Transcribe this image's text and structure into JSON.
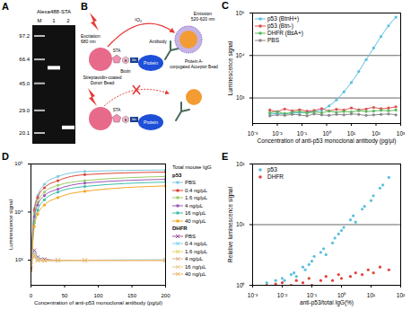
{
  "panel_a": {
    "panel": "A",
    "title": "Alexa488-STA",
    "lanes": [
      "M",
      "1",
      "2"
    ],
    "markers": [
      {
        "value": 97.2,
        "label": "97.2"
      },
      {
        "value": 66.4,
        "label": "66.4"
      },
      {
        "value": 45,
        "label": "45.0"
      },
      {
        "value": 29,
        "label": "29.0"
      },
      {
        "value": 20.1,
        "label": "20.1"
      }
    ],
    "bands": [
      {
        "lane": "1",
        "kda": 58
      },
      {
        "lane": "2",
        "kda": 22
      }
    ]
  },
  "panel_b": {
    "panel": "B",
    "excitation": [
      "Excitation",
      "680 nm"
    ],
    "singlet_oxygen": "¹O₂",
    "emission": [
      "Emission",
      "520-620 nm"
    ],
    "donor_bead": [
      "Streptavidin-coated",
      "Donor Bead"
    ],
    "acceptor_bead": [
      "Protein A-",
      "conjugated Acceptor Bead"
    ],
    "sta": "STA",
    "biotin": "Biotin",
    "biotin_tag": "B",
    "bls": "bls",
    "antibody": "Antibody",
    "protein": "Protein"
  },
  "chart_data": [
    {
      "panel": "C",
      "type": "line",
      "x_label": "Concentration of anti-p53 monoclonal antibody (pg/µl)",
      "y_label": "Luminescence signal",
      "log": true,
      "grid": true,
      "legend": "top-left",
      "xlim": [
        0.001,
        1000
      ],
      "ylim": [
        250,
        100000
      ],
      "xticks": [
        {
          "value": 0.001,
          "label": "10⁻³"
        },
        {
          "value": 0.01,
          "label": "10⁻²"
        },
        {
          "value": 0.1,
          "label": "10⁻¹"
        },
        {
          "value": 1,
          "label": "10⁰"
        },
        {
          "value": 10,
          "label": "10¹"
        },
        {
          "value": 100,
          "label": "10²"
        },
        {
          "value": 1000,
          "label": "10³"
        }
      ],
      "yticks": [
        {
          "value": 1000,
          "label": "10³"
        },
        {
          "value": 10000,
          "label": "10⁴"
        },
        {
          "value": 100000,
          "label": "10⁵"
        }
      ],
      "x": [
        0.005,
        0.01,
        0.02,
        0.04,
        0.08,
        0.16,
        0.31,
        0.63,
        1.25,
        2.5,
        5,
        10,
        20,
        40,
        80,
        160,
        320,
        640
      ],
      "series": [
        {
          "name": "p53 (BtnH+)",
          "color": "#5bc0de",
          "marker": "circle",
          "values": [
            420,
            430,
            420,
            440,
            450,
            460,
            480,
            520,
            650,
            900,
            1400,
            2300,
            4200,
            8000,
            15000,
            28000,
            50000,
            80000
          ]
        },
        {
          "name": "p53 (Btn-)",
          "color": "#d9534f",
          "marker": "circle",
          "values": [
            520,
            480,
            550,
            500,
            530,
            490,
            510,
            560,
            500,
            540,
            520,
            580,
            530,
            550,
            600,
            560,
            580,
            620
          ]
        },
        {
          "name": "DHFR (BsA+)",
          "color": "#5cb85c",
          "marker": "circle",
          "values": [
            450,
            470,
            430,
            460,
            480,
            440,
            470,
            450,
            490,
            460,
            480,
            470,
            500,
            480,
            490,
            510,
            500,
            520
          ]
        },
        {
          "name": "PBS",
          "color": "#888888",
          "marker": "circle",
          "values": [
            380,
            400,
            390,
            410,
            400,
            380,
            420,
            400,
            390,
            410,
            400,
            420,
            410,
            390,
            400,
            410,
            420,
            400
          ]
        }
      ]
    },
    {
      "panel": "D",
      "type": "line",
      "x_label": "Concentration of anti-p53 monoclonal antibody (pg/µl)",
      "y_label": "Luminescence signal",
      "log": "y",
      "grid": false,
      "legend": "right",
      "legend_title": "Total mouse IgG",
      "groups": [
        "p53",
        "DHFR"
      ],
      "xlim": [
        0,
        200
      ],
      "ylim": [
        300,
        100000
      ],
      "xticks": [
        0,
        50,
        100,
        150,
        200
      ],
      "yticks": [
        {
          "value": 1000,
          "label": "10³"
        },
        {
          "value": 10000,
          "label": "10⁴"
        },
        {
          "value": 100000,
          "label": "10⁵"
        }
      ],
      "x": [
        0,
        5,
        10,
        20,
        40,
        80,
        200
      ],
      "series": [
        {
          "name": "PBS",
          "group": "p53",
          "color": "#7ec8e3",
          "marker": "circle",
          "values": [
            700,
            12000,
            22000,
            38000,
            55000,
            70000,
            75000
          ]
        },
        {
          "name": "0.4 ng/µL",
          "group": "p53",
          "color": "#e0433a",
          "marker": "circle",
          "values": [
            700,
            11000,
            20000,
            32000,
            45000,
            60000,
            68000
          ]
        },
        {
          "name": "1.6 ng/µL",
          "group": "p53",
          "color": "#9acd66",
          "marker": "circle",
          "values": [
            650,
            9000,
            16000,
            26000,
            36000,
            45000,
            55000
          ]
        },
        {
          "name": "4 ng/µL",
          "group": "p53",
          "color": "#9b59b6",
          "marker": "circle",
          "values": [
            650,
            8000,
            14000,
            22000,
            30000,
            40000,
            48000
          ]
        },
        {
          "name": "16 ng/µL",
          "group": "p53",
          "color": "#3bbfad",
          "marker": "circle",
          "values": [
            600,
            6000,
            11000,
            18000,
            26000,
            34000,
            42000
          ]
        },
        {
          "name": "40 ng/µL",
          "group": "p53",
          "color": "#f5a623",
          "marker": "circle",
          "values": [
            600,
            5000,
            9000,
            14000,
            20000,
            27000,
            35000
          ]
        },
        {
          "name": "PBS",
          "group": "DHFR",
          "color": "#a0529a",
          "marker": "x",
          "values": [
            900,
            1600,
            1150,
            1050,
            1000,
            1000,
            1000
          ]
        },
        {
          "name": "0.4 ng/µL",
          "group": "DHFR",
          "color": "#7fd3f0",
          "marker": "x",
          "values": [
            850,
            1400,
            1100,
            1000,
            980,
            1000,
            1020
          ]
        },
        {
          "name": "1.6 ng/µL",
          "group": "DHFR",
          "color": "#e6d36a",
          "marker": "x",
          "values": [
            820,
            1300,
            1050,
            1000,
            990,
            1000,
            1000
          ]
        },
        {
          "name": "4 ng/µL",
          "group": "DHFR",
          "color": "#d9b38c",
          "marker": "x",
          "values": [
            800,
            1250,
            1000,
            980,
            1000,
            990,
            1000
          ]
        },
        {
          "name": "16 ng/µL",
          "group": "DHFR",
          "color": "#e8c98f",
          "marker": "x",
          "values": [
            800,
            1200,
            1000,
            990,
            980,
            1000,
            980
          ]
        },
        {
          "name": "40 ng/µL",
          "group": "DHFR",
          "color": "#ecb870",
          "marker": "x",
          "values": [
            780,
            1150,
            980,
            970,
            990,
            980,
            990
          ]
        }
      ]
    },
    {
      "panel": "E",
      "type": "scatter",
      "x_label": "anti-p53/total IgG(%)",
      "y_label": "Relative luminescence signal",
      "log": true,
      "grid": true,
      "legend": "top-left",
      "xlim": [
        0.001,
        100
      ],
      "ylim": [
        1,
        100
      ],
      "xticks": [
        {
          "value": 0.001,
          "label": "10⁻³"
        },
        {
          "value": 0.01,
          "label": "10⁻²"
        },
        {
          "value": 0.1,
          "label": "10⁻¹"
        },
        {
          "value": 1,
          "label": "10⁰"
        },
        {
          "value": 10,
          "label": "10¹"
        },
        {
          "value": 100,
          "label": "10²"
        }
      ],
      "yticks": [
        {
          "value": 1,
          "label": "10⁰"
        },
        {
          "value": 10,
          "label": "10¹"
        },
        {
          "value": 100,
          "label": "10²"
        }
      ],
      "series": [
        {
          "name": "p53",
          "color": "#5bc0de",
          "marker": "circle",
          "x": [
            0.003,
            0.006,
            0.01,
            0.012,
            0.02,
            0.025,
            0.03,
            0.05,
            0.06,
            0.08,
            0.1,
            0.12,
            0.2,
            0.25,
            0.3,
            0.5,
            0.6,
            0.8,
            1,
            1.2,
            2,
            2.5,
            3,
            5,
            6,
            10,
            12,
            20,
            25,
            40
          ],
          "values": [
            1.1,
            1.2,
            1.3,
            1.2,
            1.5,
            1.6,
            1.4,
            2.0,
            1.8,
            2.2,
            2.5,
            3,
            3.5,
            4,
            3.2,
            5,
            6,
            7,
            8,
            9,
            12,
            14,
            11,
            18,
            20,
            25,
            30,
            40,
            45,
            60
          ]
        },
        {
          "name": "DHFR",
          "color": "#e0433a",
          "marker": "circle",
          "x": [
            0.003,
            0.006,
            0.01,
            0.02,
            0.03,
            0.05,
            0.08,
            0.1,
            0.2,
            0.3,
            0.5,
            0.8,
            1,
            2,
            3,
            5,
            8,
            12,
            20,
            40
          ],
          "values": [
            1.0,
            1.05,
            1.1,
            1.0,
            1.2,
            1.1,
            1.3,
            1.0,
            1.2,
            1.4,
            1.2,
            1.5,
            1.3,
            1.4,
            1.6,
            1.5,
            1.8,
            1.6,
            2.0,
            1.8
          ]
        }
      ]
    }
  ]
}
